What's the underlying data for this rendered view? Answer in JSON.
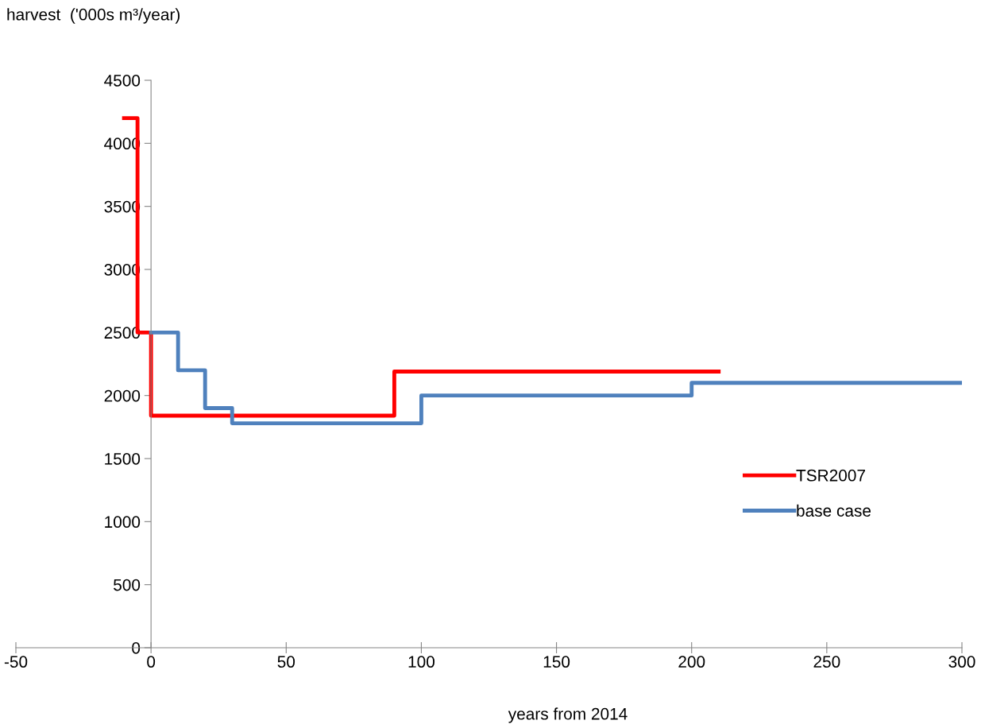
{
  "chart_data": {
    "type": "step",
    "xlabel": "years from 2014",
    "ylabel": "harvest  ('000s m³/year)",
    "series": [
      {
        "name": "TSR2007",
        "color": "#ff0000",
        "x": [
          -10,
          -5,
          0,
          90,
          210
        ],
        "values": [
          4200,
          2500,
          1840,
          2190,
          2190
        ]
      },
      {
        "name": "base case",
        "color": "#4f81bd",
        "x": [
          0,
          10,
          20,
          30,
          100,
          200,
          300
        ],
        "values": [
          2500,
          2200,
          1900,
          1780,
          2000,
          2100,
          2100
        ]
      }
    ],
    "xlim": [
      -50,
      300
    ],
    "xticks": [
      -50,
      0,
      50,
      100,
      150,
      200,
      250,
      300
    ],
    "ylim": [
      0,
      4500
    ],
    "yticks": [
      0,
      500,
      1000,
      1500,
      2000,
      2500,
      3000,
      3500,
      4000,
      4500
    ],
    "grid": false,
    "legend": "right",
    "line_style": "solid",
    "marker": "none"
  }
}
